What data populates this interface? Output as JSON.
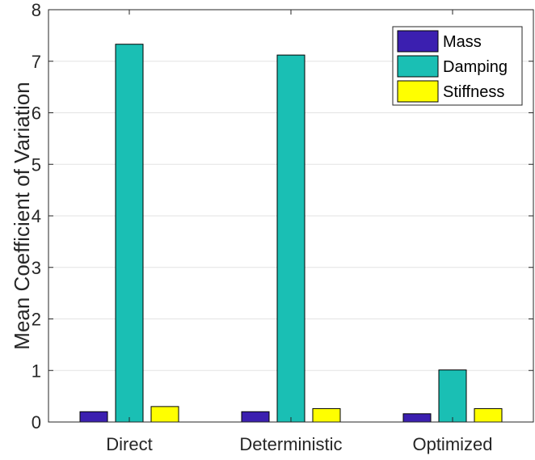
{
  "chart_data": {
    "type": "bar",
    "categories": [
      "Direct",
      "Deterministic",
      "Optimized"
    ],
    "series": [
      {
        "name": "Mass",
        "color": "#3b1fb0",
        "values": [
          0.2,
          0.2,
          0.16
        ]
      },
      {
        "name": "Damping",
        "color": "#1abfb4",
        "values": [
          7.33,
          7.12,
          1.01
        ]
      },
      {
        "name": "Stiffness",
        "color": "#ffff00",
        "values": [
          0.3,
          0.26,
          0.26
        ]
      }
    ],
    "xlabel": "",
    "ylabel": "Mean Coefficient of Variation",
    "ylim": [
      0,
      8
    ],
    "yticks": [
      0,
      1,
      2,
      3,
      4,
      5,
      6,
      7,
      8
    ],
    "grid": "horizontal",
    "legend_position": "top-right"
  }
}
